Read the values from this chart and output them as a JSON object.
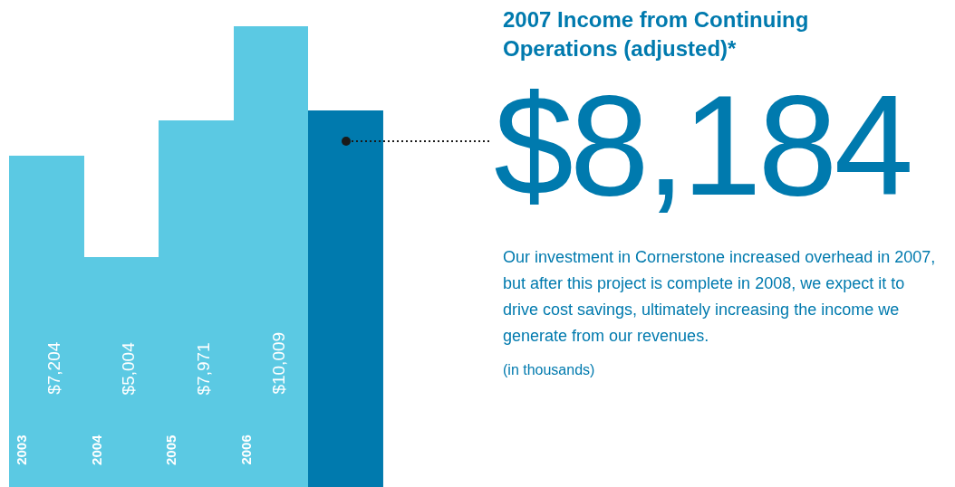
{
  "chart_data": {
    "type": "bar",
    "title": "2007 Income from Continuing Operations (adjusted)*",
    "categories": [
      "2003",
      "2004",
      "2005",
      "2006",
      null
    ],
    "values": [
      7204,
      5004,
      7971,
      10009,
      8184
    ],
    "colors": [
      "#5bc9e3",
      "#5bc9e3",
      "#5bc9e3",
      "#5bc9e3",
      "#007aae"
    ],
    "value_labels": [
      "$7,204",
      "$5,004",
      "$7,971",
      "$10,009",
      null
    ],
    "annotations": [
      "$8,184",
      "Our investment in Cornerstone increased overhead in 2007, but after this project is complete in 2008, we expect it to drive cost savings, ultimately increasing the income we generate from our revenues.",
      "(in thousands)"
    ],
    "tick_labels": "x",
    "grid": false,
    "legend": false
  }
}
